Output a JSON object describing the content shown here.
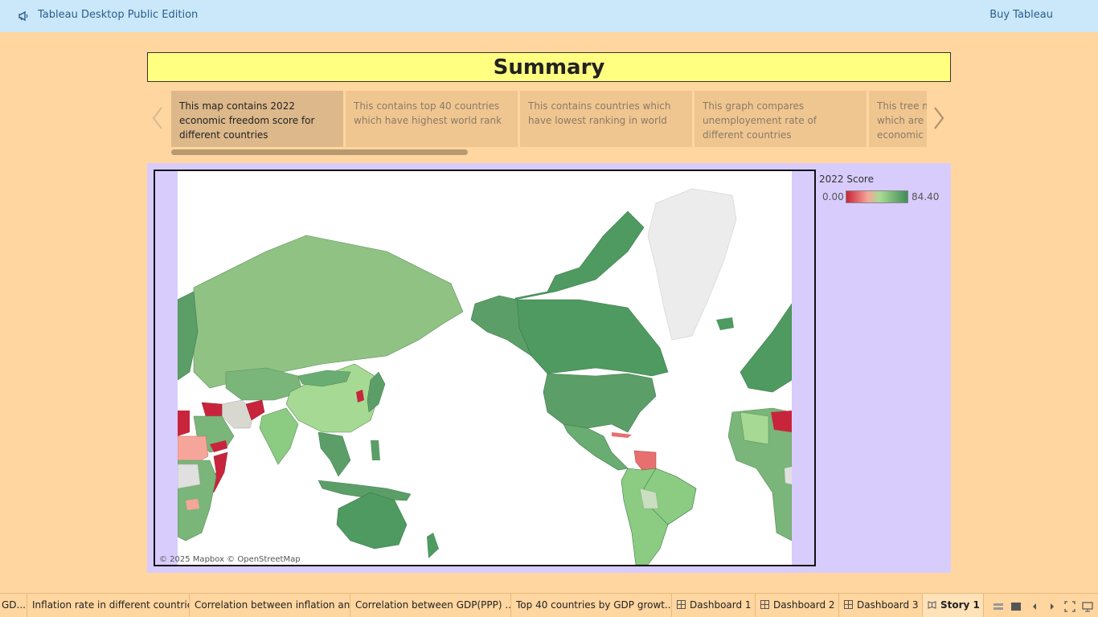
{
  "topbar": {
    "app_title": "Tableau Desktop Public Edition",
    "buy_label": "Buy Tableau",
    "logo_icon": "megaphone-icon",
    "bg_color": "#cbe8fb"
  },
  "story": {
    "title": "Summary",
    "prev_icon": "chevron-left-icon",
    "next_icon": "chevron-right-icon",
    "points": [
      {
        "caption": "This map contains 2022 economic freedom score for different countries",
        "active": true
      },
      {
        "caption": "This contains top 40 countries which have highest world rank",
        "active": false
      },
      {
        "caption": "This contains countries which have lowest ranking in world",
        "active": false
      },
      {
        "caption": "This graph compares unemployement rate of different countries",
        "active": false
      },
      {
        "caption": "This tree map shows countries which are having high economic freedom level",
        "active": false
      }
    ]
  },
  "map": {
    "attribution": "© 2025 Mapbox © OpenStreetMap",
    "legend": {
      "title": "2022 Score",
      "min": "0.00",
      "max": "84.40",
      "colors": [
        "#c8253d",
        "#f6a59a",
        "#a8dc94",
        "#3e8c57"
      ]
    }
  },
  "tabs": [
    {
      "label": "GD...",
      "icon": ""
    },
    {
      "label": "Inflation rate in different countries",
      "icon": ""
    },
    {
      "label": "Correlation between inflation an...",
      "icon": ""
    },
    {
      "label": "Correlation between GDP(PPP) ...",
      "icon": ""
    },
    {
      "label": "Top 40 countries by GDP growt...",
      "icon": ""
    },
    {
      "label": "Dashboard 1",
      "icon": "dashboard-icon"
    },
    {
      "label": "Dashboard 2",
      "icon": "dashboard-icon"
    },
    {
      "label": "Dashboard 3",
      "icon": "dashboard-icon"
    },
    {
      "label": "Story 1",
      "icon": "story-icon"
    }
  ],
  "controls": [
    "sheet-sorter-icon",
    "filmstrip-icon",
    "prev-sheet-icon",
    "next-sheet-icon",
    "presentation-mode-icon",
    "device-preview-icon"
  ]
}
